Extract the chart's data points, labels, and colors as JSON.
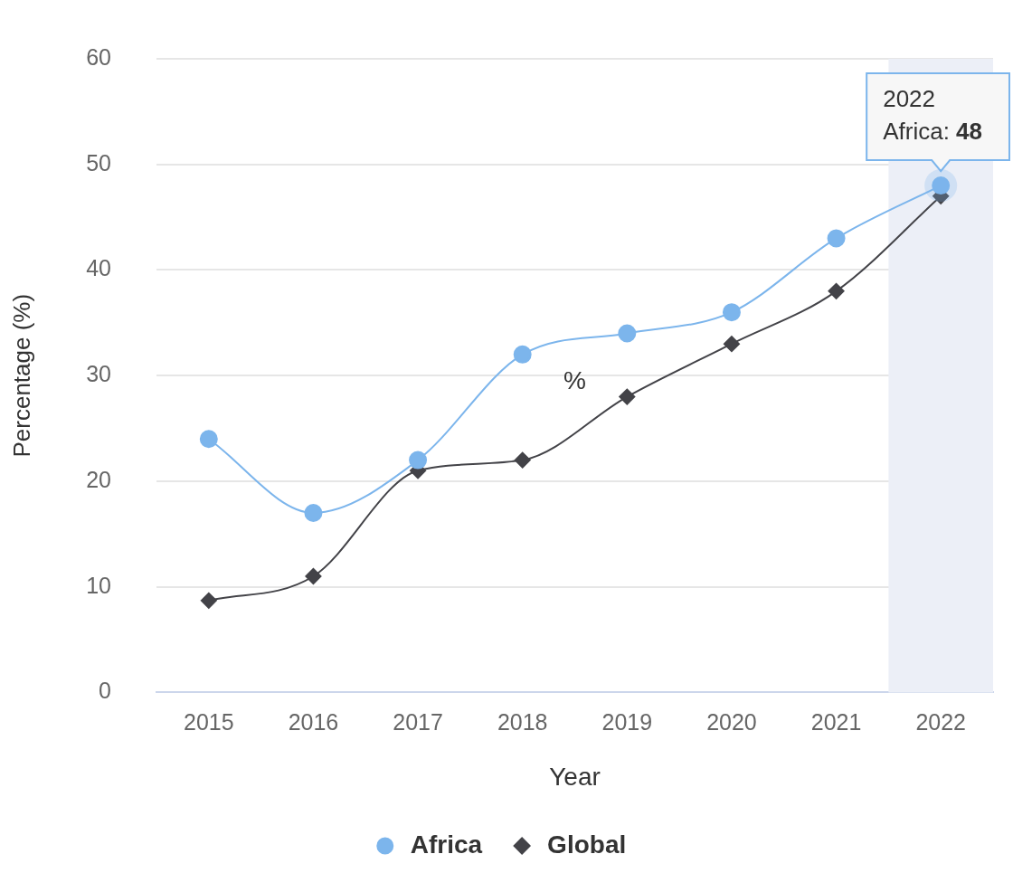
{
  "chart_data": {
    "type": "line",
    "xlabel": "Year",
    "ylabel": "Percentage (%)",
    "categories": [
      "2015",
      "2016",
      "2017",
      "2018",
      "2019",
      "2020",
      "2021",
      "2022"
    ],
    "series": [
      {
        "name": "Africa",
        "color": "#7cb5ec",
        "marker": "circle",
        "values": [
          24,
          17,
          22,
          32,
          34,
          36,
          43,
          48
        ]
      },
      {
        "name": "Global",
        "color": "#434348",
        "marker": "diamond",
        "values": [
          8.7,
          11,
          21,
          22,
          28,
          33,
          38,
          47
        ]
      }
    ],
    "ylim": [
      0,
      60
    ],
    "yticks": [
      0,
      10,
      20,
      30,
      40,
      50,
      60
    ],
    "grid": "y",
    "legend": "bottom",
    "bands": [
      {
        "axis": "x",
        "from": "2022",
        "to": "2022",
        "color": "#eceff7"
      }
    ],
    "annotations": [
      {
        "text": "2022\nAfrica: 48",
        "x": "2022",
        "y": 48
      },
      "%"
    ]
  }
}
